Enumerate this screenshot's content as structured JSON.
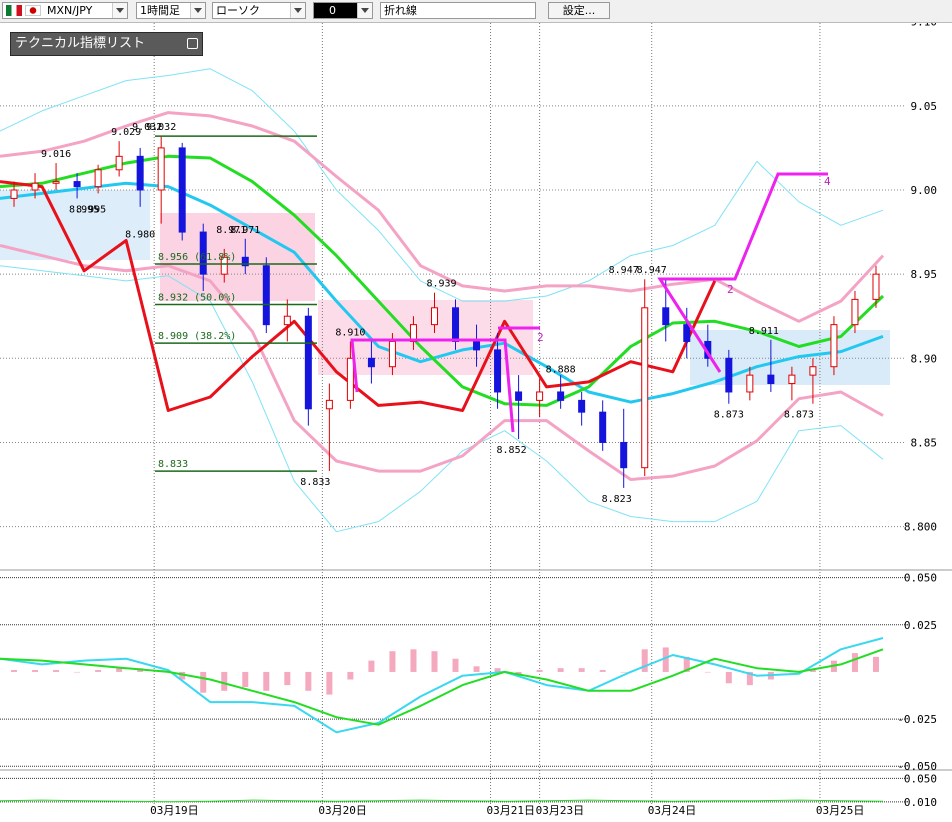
{
  "toolbar": {
    "symbol": "MXN/JPY",
    "timeframe": "1時間足",
    "chart_style": "ローソク",
    "slot": "0",
    "line_type": "折れ線",
    "settings": "設定..."
  },
  "indicator_panel": {
    "title": "テクニカル指標リスト"
  },
  "wave_labels": [
    "2",
    "2",
    "4"
  ],
  "chart_data": [
    {
      "type": "candlestick",
      "xlim": [
        0,
        127
      ],
      "xticks": [
        {
          "value": 22,
          "label": "03月19日"
        },
        {
          "value": 46,
          "label": "03月20日"
        },
        {
          "value": 70,
          "label": "03月21日"
        },
        {
          "value": 77,
          "label": "03月23日"
        },
        {
          "value": 93,
          "label": "03月24日"
        },
        {
          "value": 117,
          "label": "03月25日"
        }
      ],
      "ylim": [
        8.776,
        9.101
      ],
      "yticks": [
        {
          "value": 9.1,
          "label": "9.10"
        },
        9.05,
        {
          "value": 9,
          "label": "9.00"
        },
        8.95,
        {
          "value": 8.9,
          "label": "8.90"
        },
        8.85,
        {
          "value": 8.8,
          "label": "8.800"
        }
      ],
      "grid": true,
      "up_color": "#e00000",
      "down_color": "#1414dc",
      "candles": {
        "x": [
          2,
          5,
          8,
          11,
          14,
          17,
          20,
          23,
          26,
          29,
          32,
          35,
          38,
          41,
          44,
          47,
          50,
          53,
          56,
          59,
          62,
          65,
          68,
          71,
          74,
          77,
          80,
          83,
          86,
          89,
          92,
          95,
          98,
          101,
          104,
          107,
          110,
          113,
          116,
          119,
          122,
          125
        ],
        "open": [
          8.995,
          9.0,
          9.004,
          9.005,
          9.002,
          9.012,
          9.02,
          9.0,
          9.025,
          8.975,
          8.95,
          8.96,
          8.955,
          8.92,
          8.925,
          8.87,
          8.875,
          8.9,
          8.895,
          8.91,
          8.92,
          8.93,
          8.91,
          8.905,
          8.88,
          8.875,
          8.88,
          8.875,
          8.868,
          8.85,
          8.835,
          8.93,
          8.92,
          8.91,
          8.9,
          8.88,
          8.89,
          8.885,
          8.89,
          8.895,
          8.92,
          8.935
        ],
        "high": [
          9.005,
          9.01,
          9.016,
          9.01,
          9.015,
          9.029,
          9.025,
          9.032,
          9.028,
          8.98,
          8.965,
          8.971,
          8.96,
          8.935,
          8.93,
          8.885,
          8.91,
          8.91,
          8.915,
          8.925,
          8.939,
          8.935,
          8.92,
          8.915,
          8.89,
          8.888,
          8.89,
          8.88,
          8.875,
          8.87,
          8.947,
          8.947,
          8.93,
          8.92,
          8.905,
          8.895,
          8.911,
          8.895,
          8.9,
          8.925,
          8.94,
          8.955
        ],
        "low": [
          8.99,
          8.995,
          9.0,
          8.995,
          8.998,
          9.008,
          8.99,
          8.98,
          8.97,
          8.94,
          8.945,
          8.95,
          8.915,
          8.91,
          8.86,
          8.833,
          8.87,
          8.885,
          8.89,
          8.905,
          8.915,
          8.905,
          8.895,
          8.87,
          8.852,
          8.865,
          8.87,
          8.86,
          8.845,
          8.823,
          8.83,
          8.91,
          8.9,
          8.895,
          8.873,
          8.875,
          8.88,
          8.875,
          8.873,
          8.89,
          8.915,
          8.93
        ],
        "close": [
          9.0,
          9.004,
          9.005,
          9.002,
          9.012,
          9.02,
          9.0,
          9.025,
          8.975,
          8.95,
          8.96,
          8.955,
          8.92,
          8.925,
          8.87,
          8.875,
          8.9,
          8.895,
          8.91,
          8.92,
          8.93,
          8.91,
          8.905,
          8.88,
          8.875,
          8.88,
          8.875,
          8.868,
          8.85,
          8.835,
          8.93,
          8.92,
          8.91,
          8.9,
          8.88,
          8.89,
          8.885,
          8.89,
          8.895,
          8.92,
          8.935,
          8.95
        ]
      },
      "series_x": [
        0,
        6,
        12,
        18,
        24,
        30,
        36,
        42,
        48,
        54,
        60,
        66,
        72,
        78,
        84,
        90,
        96,
        102,
        108,
        114,
        120,
        126
      ],
      "series": [
        {
          "color": "#7fe3f5",
          "width": 1,
          "values": [
            9.035,
            9.047,
            9.056,
            9.065,
            9.068,
            9.072,
            9.059,
            9.035,
            9.0,
            8.976,
            8.946,
            8.934,
            8.934,
            8.937,
            8.946,
            8.961,
            8.967,
            8.979,
            9.017,
            8.993,
            8.979,
            8.988
          ]
        },
        {
          "color": "#7fe3f5",
          "width": 1,
          "values": [
            8.955,
            8.952,
            8.949,
            8.946,
            8.949,
            8.934,
            8.886,
            8.827,
            8.797,
            8.803,
            8.821,
            8.845,
            8.857,
            8.839,
            8.815,
            8.806,
            8.803,
            8.803,
            8.815,
            8.857,
            8.86,
            8.84
          ]
        },
        {
          "color": "#f4a3c4",
          "width": 3,
          "values": [
            9.02,
            9.023,
            9.029,
            9.038,
            9.046,
            9.044,
            9.038,
            9.029,
            9.008,
            8.988,
            8.955,
            8.943,
            8.94,
            8.943,
            8.943,
            8.94,
            8.944,
            8.947,
            8.934,
            8.922,
            8.934,
            8.961
          ]
        },
        {
          "color": "#f4a3c4",
          "width": 3,
          "values": [
            8.967,
            8.961,
            8.955,
            8.952,
            8.955,
            8.946,
            8.916,
            8.863,
            8.839,
            8.833,
            8.833,
            8.842,
            8.863,
            8.863,
            8.845,
            8.828,
            8.83,
            8.836,
            8.851,
            8.876,
            8.88,
            8.866
          ]
        },
        {
          "color": "#22c8f0",
          "width": 3,
          "values": [
            8.995,
            8.998,
            9.001,
            9.004,
            9.002,
            8.991,
            8.977,
            8.963,
            8.934,
            8.907,
            8.898,
            8.905,
            8.909,
            8.895,
            8.88,
            8.874,
            8.879,
            8.886,
            8.895,
            8.901,
            8.904,
            8.913
          ]
        },
        {
          "color": "#22dd22",
          "width": 3,
          "values": [
            9.002,
            9.004,
            9.01,
            9.016,
            9.02,
            9.019,
            9.005,
            8.985,
            8.961,
            8.934,
            8.907,
            8.883,
            8.873,
            8.872,
            8.883,
            8.907,
            8.921,
            8.922,
            8.916,
            8.907,
            8.913,
            8.937
          ]
        },
        {
          "color": "#e8101a",
          "width": 3,
          "values": [
            9.005,
            9.002,
            8.952,
            8.97,
            8.869,
            8.877,
            8.901,
            8.922,
            8.892,
            8.872,
            8.874,
            8.869,
            8.922,
            8.883,
            8.886,
            8.898,
            8.892,
            8.946,
            null,
            null,
            null,
            null
          ]
        }
      ],
      "fibonacci": [
        {
          "value": 9.032
        },
        {
          "value": 8.956,
          "label": "8.956 (61.8%)"
        },
        {
          "value": 8.932,
          "label": "8.932 (50.0%)"
        },
        {
          "value": 8.909,
          "label": "8.909 (38.2%)"
        },
        {
          "value": 8.833,
          "label": "8.833"
        }
      ],
      "price_labels": [
        {
          "x": 18,
          "value": 9.029,
          "label": "9.029",
          "side": "high"
        },
        {
          "x": 23,
          "value": 9.032,
          "label": "9.032",
          "side": "high"
        },
        {
          "x": 21,
          "value": 9.032,
          "label": "9.032",
          "side": "high"
        },
        {
          "x": 8,
          "value": 9.016,
          "label": "9.016",
          "side": "high"
        },
        {
          "x": 13,
          "value": 8.995,
          "label": "8.995",
          "side": "low"
        },
        {
          "x": 12,
          "value": 8.995,
          "label": "8.995",
          "side": "low"
        },
        {
          "x": 20,
          "value": 8.98,
          "label": "8.980",
          "side": "low"
        },
        {
          "x": 33,
          "value": 8.971,
          "label": "8.971",
          "side": "high"
        },
        {
          "x": 35,
          "value": 8.971,
          "label": "8.971",
          "side": "high"
        },
        {
          "x": 50,
          "value": 8.91,
          "label": "8.910",
          "side": "high"
        },
        {
          "x": 63,
          "value": 8.939,
          "label": "8.939",
          "side": "high"
        },
        {
          "x": 80,
          "value": 8.888,
          "label": "8.888",
          "side": "high"
        },
        {
          "x": 73,
          "value": 8.852,
          "label": "8.852",
          "side": "low"
        },
        {
          "x": 45,
          "value": 8.833,
          "label": "8.833",
          "side": "low"
        },
        {
          "x": 88,
          "value": 8.823,
          "label": "8.823",
          "side": "low"
        },
        {
          "x": 89,
          "value": 8.947,
          "label": "8.947",
          "side": "high"
        },
        {
          "x": 93,
          "value": 8.947,
          "label": "8.947",
          "side": "high"
        },
        {
          "x": 109,
          "value": 8.911,
          "label": "8.911",
          "side": "high"
        },
        {
          "x": 104,
          "value": 8.873,
          "label": "8.873",
          "side": "low"
        },
        {
          "x": 114,
          "value": 8.873,
          "label": "8.873",
          "side": "low"
        }
      ]
    },
    {
      "type": "macd",
      "ylim": [
        -0.052,
        0.053
      ],
      "yticks": [
        {
          "value": 0.05,
          "label": "0.050"
        },
        {
          "value": 0.025,
          "label": "0.025"
        },
        {
          "value": -0.025,
          "label": "-0.025"
        },
        {
          "value": -0.05,
          "label": "-0.050"
        }
      ],
      "histogram": {
        "color": "#f4a9bf",
        "x": [
          2,
          5,
          8,
          11,
          14,
          17,
          20,
          23,
          26,
          29,
          32,
          35,
          38,
          41,
          44,
          47,
          50,
          53,
          56,
          59,
          62,
          65,
          68,
          71,
          74,
          77,
          80,
          83,
          86,
          89,
          92,
          95,
          98,
          101,
          104,
          107,
          110,
          113,
          116,
          119,
          122,
          125
        ],
        "values": [
          0.001,
          0.001,
          0.001,
          0,
          0.001,
          0.002,
          0.002,
          0.001,
          -0.004,
          -0.011,
          -0.01,
          -0.008,
          -0.01,
          -0.007,
          -0.01,
          -0.012,
          -0.004,
          0.006,
          0.011,
          0.012,
          0.011,
          0.007,
          0.003,
          0.002,
          -0.002,
          0.001,
          0.002,
          0.002,
          0.001,
          0,
          0.012,
          0.013,
          0.008,
          0,
          -0.006,
          -0.007,
          -0.004,
          0,
          0.001,
          0.006,
          0.01,
          0.008
        ]
      },
      "series_x": [
        0,
        6,
        12,
        18,
        24,
        30,
        36,
        42,
        48,
        54,
        60,
        66,
        72,
        78,
        84,
        90,
        96,
        102,
        108,
        114,
        120,
        126
      ],
      "series": [
        {
          "color": "#38d8f0",
          "width": 2,
          "values": [
            0.007,
            0.004,
            0.006,
            0.007,
            0.001,
            -0.016,
            -0.016,
            -0.018,
            -0.032,
            -0.027,
            -0.013,
            -0.002,
            0,
            -0.007,
            -0.01,
            0,
            0.009,
            0.004,
            -0.002,
            -0.001,
            0.012,
            0.018
          ]
        },
        {
          "color": "#22dd22",
          "width": 2,
          "values": [
            0.007,
            0.006,
            0.004,
            0.002,
            0,
            -0.004,
            -0.01,
            -0.016,
            -0.024,
            -0.028,
            -0.018,
            -0.007,
            0,
            -0.004,
            -0.01,
            -0.01,
            -0.002,
            0.007,
            0.002,
            0,
            0.004,
            0.012
          ]
        }
      ]
    },
    {
      "type": "line",
      "ylim": [
        0.0046,
        0.061
      ],
      "yticks": [
        {
          "value": 0.05,
          "label": "0.050"
        },
        {
          "value": 0.01,
          "label": "0.010"
        }
      ],
      "series_x": [
        0,
        6,
        12,
        18,
        24,
        30,
        36,
        42,
        48,
        54,
        60,
        66,
        72,
        78,
        84,
        90,
        96,
        102,
        108,
        114,
        120,
        126
      ],
      "series": [
        {
          "color": "#22dd22",
          "width": 1,
          "values": [
            0.012,
            0.013,
            0.012,
            0.011,
            0.01,
            0.011,
            0.013,
            0.012,
            0.011,
            0.012,
            0.013,
            0.012,
            0.011,
            0.012,
            0.013,
            0.012,
            0.011,
            0.012,
            0.012,
            0.013,
            0.012,
            0.011
          ]
        }
      ]
    }
  ]
}
